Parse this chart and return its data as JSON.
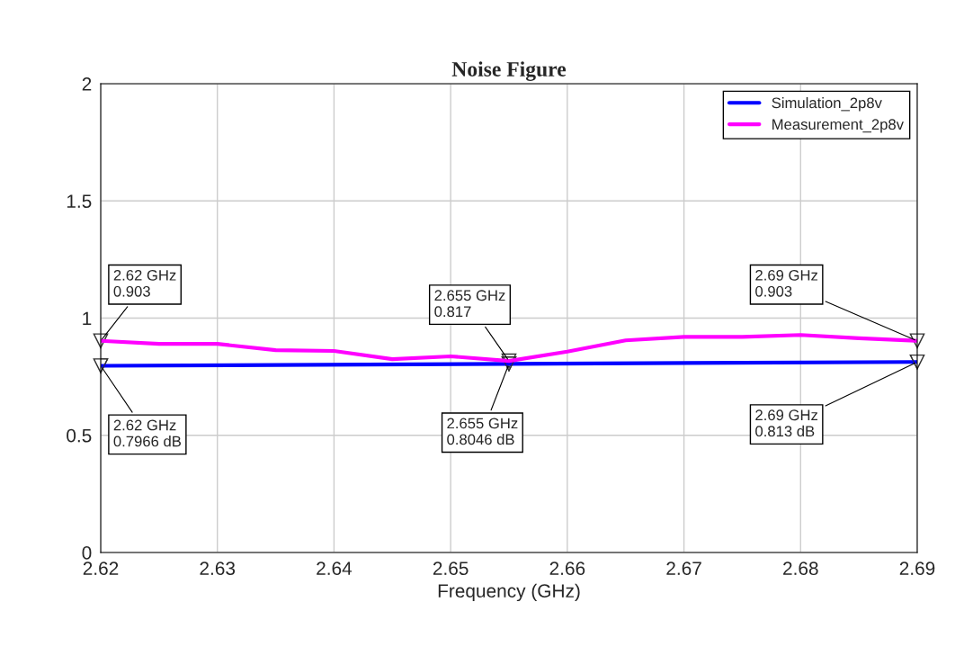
{
  "chart_data": {
    "type": "line",
    "title": "Noise Figure",
    "xlabel": "Frequency (GHz)",
    "xlim": [
      2.62,
      2.69
    ],
    "xticks": [
      2.62,
      2.63,
      2.64,
      2.65,
      2.66,
      2.67,
      2.68,
      2.69
    ],
    "ylim": [
      0,
      2
    ],
    "yticks": [
      0,
      0.5,
      1,
      1.5,
      2
    ],
    "grid": true,
    "legend": "top right",
    "line_style": "solid",
    "series": [
      {
        "name": "Simulation_2p8v",
        "color": "#0000ff",
        "marker": "triangle",
        "x": [
          2.62,
          2.655,
          2.69
        ],
        "values": [
          0.7966,
          0.8046,
          0.813
        ]
      },
      {
        "name": "Measurement_2p8v",
        "color": "#ff00ff",
        "x": [
          2.62,
          2.625,
          2.63,
          2.635,
          2.64,
          2.645,
          2.65,
          2.655,
          2.66,
          2.665,
          2.67,
          2.675,
          2.68,
          2.685,
          2.69
        ],
        "values": [
          0.903,
          0.89,
          0.89,
          0.863,
          0.86,
          0.825,
          0.837,
          0.817,
          0.857,
          0.905,
          0.92,
          0.92,
          0.928,
          0.914,
          0.903
        ]
      }
    ],
    "annotations": [
      {
        "text": "2.62 GHz\n0.903",
        "x": 2.62,
        "y": 0.903
      },
      {
        "text": "2.655 GHz\n0.817",
        "x": 2.655,
        "y": 0.817
      },
      {
        "text": "2.69 GHz\n0.903",
        "x": 2.69,
        "y": 0.903
      },
      {
        "text": "2.62 GHz\n0.7966 dB",
        "x": 2.62,
        "y": 0.7966
      },
      {
        "text": "2.655 GHz\n0.8046 dB",
        "x": 2.655,
        "y": 0.8046
      },
      {
        "text": "2.69 GHz\n0.813 dB",
        "x": 2.69,
        "y": 0.813
      }
    ]
  }
}
